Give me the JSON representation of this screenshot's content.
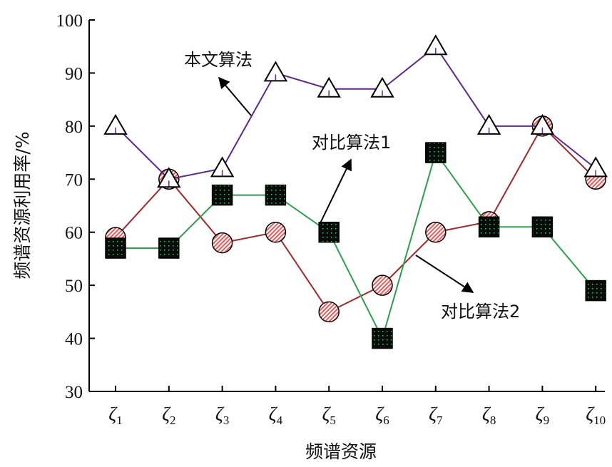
{
  "chart_data": {
    "type": "line",
    "xlabel": "频谱资源",
    "ylabel": "频谱资源利用率/%",
    "ylim": [
      30,
      100
    ],
    "yticks": [
      30,
      40,
      50,
      60,
      70,
      80,
      90,
      100
    ],
    "categories": [
      {
        "symbol": "ζ",
        "sub": "1"
      },
      {
        "symbol": "ζ",
        "sub": "2"
      },
      {
        "symbol": "ζ",
        "sub": "3"
      },
      {
        "symbol": "ζ",
        "sub": "4"
      },
      {
        "symbol": "ζ",
        "sub": "5"
      },
      {
        "symbol": "ζ",
        "sub": "6"
      },
      {
        "symbol": "ζ",
        "sub": "7"
      },
      {
        "symbol": "ζ",
        "sub": "8"
      },
      {
        "symbol": "ζ",
        "sub": "9"
      },
      {
        "symbol": "ζ",
        "sub": "10"
      }
    ],
    "grid": false,
    "series": [
      {
        "name": "本文算法",
        "marker": "triangle",
        "color": "#5b2a86",
        "values": [
          80,
          70,
          72,
          90,
          87,
          87,
          95,
          80,
          80,
          72
        ]
      },
      {
        "name": "对比算法1",
        "marker": "square",
        "color": "#2e9e4f",
        "values": [
          57,
          57,
          67,
          67,
          60,
          40,
          75,
          61,
          61,
          49
        ]
      },
      {
        "name": "对比算法2",
        "marker": "circle",
        "color": "#9b2a2a",
        "values": [
          59,
          70,
          58,
          60,
          45,
          50,
          60,
          62,
          80,
          70
        ]
      }
    ],
    "annotations": [
      {
        "text": "本文算法",
        "series": 0
      },
      {
        "text": "对比算法1",
        "series": 1
      },
      {
        "text": "对比算法2",
        "series": 2
      }
    ]
  }
}
